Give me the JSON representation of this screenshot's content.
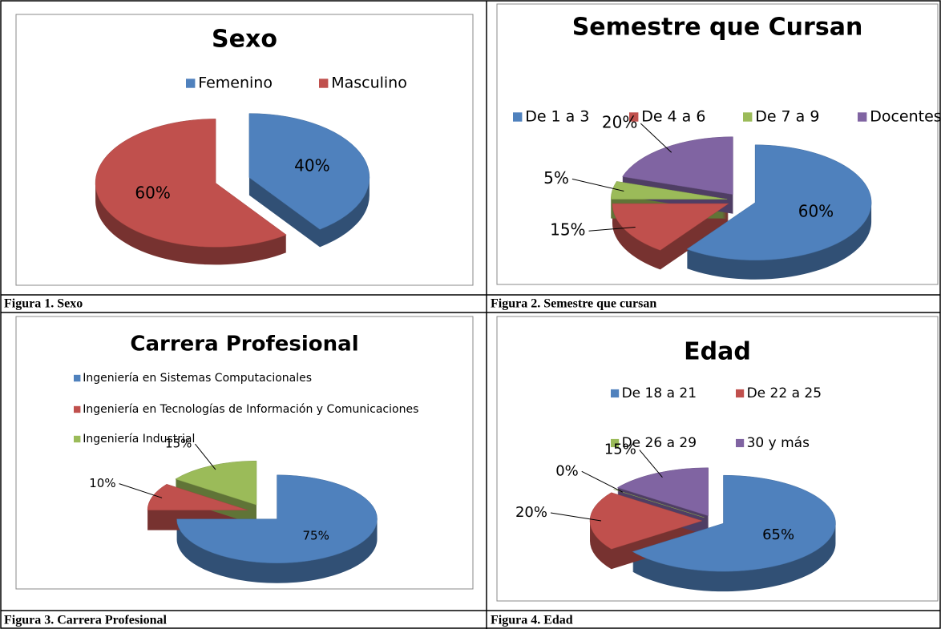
{
  "chart_data": [
    {
      "type": "pie",
      "title": "Sexo",
      "categories": [
        "Femenino",
        "Masculino"
      ],
      "values": [
        40,
        60
      ],
      "value_labels": [
        "40%",
        "60%"
      ],
      "colors": [
        "#4f81bd",
        "#c0504d"
      ]
    },
    {
      "type": "pie",
      "title": "Semestre que Cursan",
      "categories": [
        "De 1 a 3",
        "De 4 a 6",
        "De 7 a 9",
        "Docentes"
      ],
      "values": [
        60,
        15,
        5,
        20
      ],
      "value_labels": [
        "60%",
        "15%",
        "5%",
        "20%"
      ],
      "colors": [
        "#4f81bd",
        "#c0504d",
        "#9bbb59",
        "#8064a2"
      ]
    },
    {
      "type": "pie",
      "title": "Carrera Profesional",
      "categories": [
        "Ingeniería en Sistemas Computacionales",
        "Ingeniería en Tecnologías de Información y Comunicaciones",
        "Ingeniería Industrial"
      ],
      "values": [
        75,
        10,
        15
      ],
      "value_labels": [
        "75%",
        "10%",
        "15%"
      ],
      "colors": [
        "#4f81bd",
        "#c0504d",
        "#9bbb59"
      ]
    },
    {
      "type": "pie",
      "title": "Edad",
      "categories": [
        "De 18 a 21",
        "De 22 a 25",
        "De 26 a 29",
        "30 y más"
      ],
      "values": [
        65,
        20,
        0,
        15
      ],
      "value_labels": [
        "65%",
        "20%",
        "0%",
        "15%"
      ],
      "colors": [
        "#4f81bd",
        "#c0504d",
        "#9bbb59",
        "#8064a2"
      ]
    }
  ],
  "captions": [
    "Figura 1. Sexo",
    "Figura 2. Semestre que cursan",
    "Figura 3. Carrera Profesional",
    "Figura 4. Edad"
  ]
}
